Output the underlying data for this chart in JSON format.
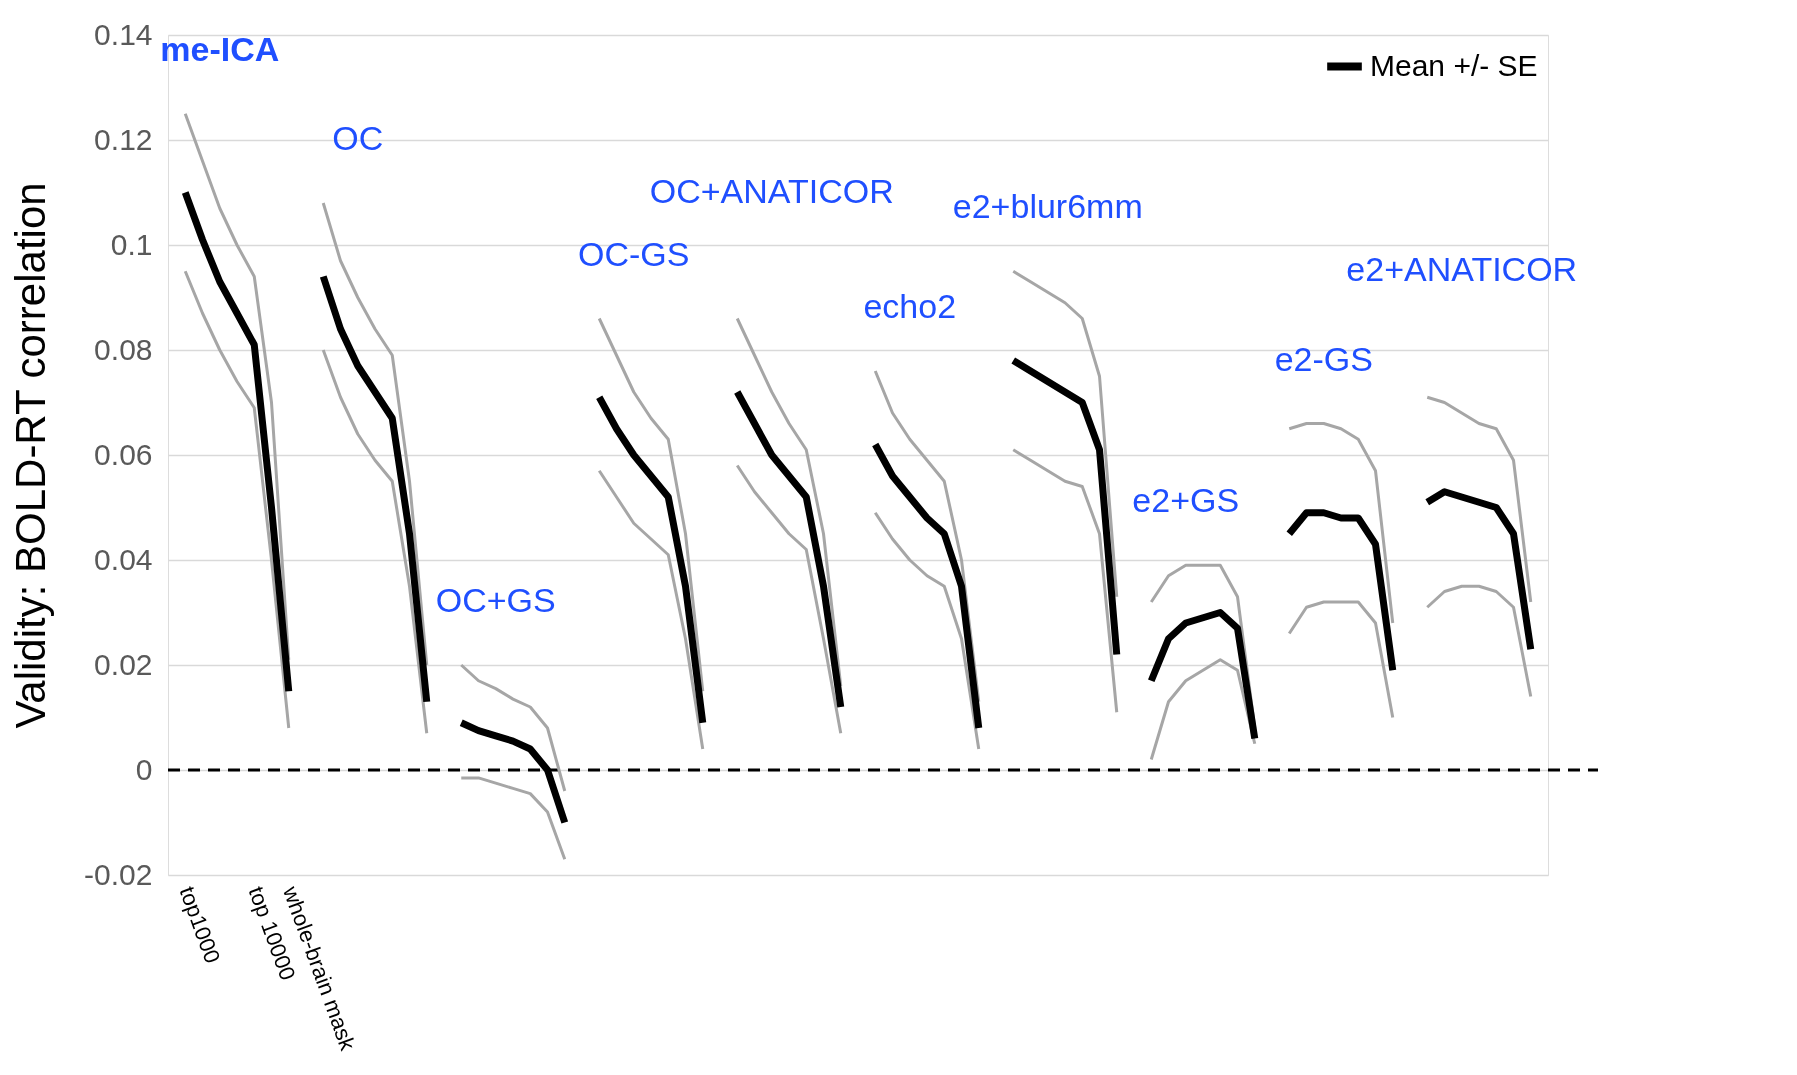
{
  "chart_data": {
    "type": "line",
    "ylabel": "Validity: BOLD-RT correlation",
    "categories": [
      "top1000",
      null,
      null,
      null,
      "top 10000",
      null,
      "whole-brain mask",
      null,
      null,
      null,
      null,
      null,
      null,
      null,
      null,
      null,
      null,
      null,
      null,
      null,
      null,
      null,
      null,
      null,
      null,
      null,
      null,
      null,
      null,
      null,
      null,
      null,
      null,
      null,
      null,
      null,
      null,
      null,
      null,
      null,
      null,
      null,
      null,
      null,
      null,
      null,
      null,
      null,
      null,
      null,
      null,
      null,
      null,
      null,
      null,
      null,
      null,
      null,
      null,
      null,
      null,
      null,
      null,
      null,
      null,
      null,
      null,
      null,
      null,
      null,
      null,
      null,
      null,
      null,
      null,
      null,
      null,
      null,
      null
    ],
    "series": [
      {
        "color": "#a6a6a6",
        "values": [
          0.125,
          0.116,
          0.107,
          0.1,
          0.094,
          0.07,
          0.021,
          null,
          0.108,
          0.097,
          0.09,
          0.084,
          0.079,
          0.055,
          0.02,
          null,
          0.02,
          0.017,
          0.0155,
          0.0135,
          0.012,
          0.008,
          -0.004,
          null,
          0.086,
          0.079,
          0.072,
          0.067,
          0.063,
          0.045,
          0.015,
          null,
          0.086,
          0.079,
          0.072,
          0.066,
          0.061,
          0.045,
          0.016,
          null,
          0.076,
          0.068,
          0.063,
          0.059,
          0.055,
          0.04,
          0.013,
          null,
          0.095,
          0.093,
          0.091,
          0.089,
          0.086,
          0.075,
          0.033,
          null,
          0.032,
          0.037,
          0.039,
          0.039,
          0.039,
          0.033,
          0.008,
          null,
          0.065,
          0.066,
          0.066,
          0.065,
          0.063,
          0.057,
          0.028,
          null,
          0.071,
          0.07,
          0.068,
          0.066,
          0.065,
          0.059,
          0.032
        ]
      },
      {
        "color": "#a6a6a6",
        "values": [
          0.095,
          0.087,
          0.08,
          0.074,
          0.069,
          0.04,
          0.008,
          null,
          0.08,
          0.071,
          0.064,
          0.059,
          0.055,
          0.035,
          0.007,
          null,
          -0.0015,
          -0.0015,
          -0.0025,
          -0.0035,
          -0.0045,
          -0.008,
          -0.017,
          null,
          0.057,
          0.052,
          0.047,
          0.044,
          0.041,
          0.025,
          0.004,
          null,
          0.058,
          0.053,
          0.049,
          0.045,
          0.042,
          0.025,
          0.007,
          null,
          0.049,
          0.044,
          0.04,
          0.037,
          0.035,
          0.025,
          0.004,
          null,
          0.061,
          0.059,
          0.057,
          0.055,
          0.054,
          0.045,
          0.011,
          null,
          0.002,
          0.013,
          0.017,
          0.019,
          0.021,
          0.019,
          0.005,
          null,
          0.026,
          0.031,
          0.032,
          0.032,
          0.032,
          0.028,
          0.01,
          null,
          0.031,
          0.034,
          0.035,
          0.035,
          0.034,
          0.031,
          0.014
        ]
      },
      {
        "name": "Mean +/- SE",
        "color": "#000000",
        "values": [
          0.11,
          0.101,
          0.093,
          0.087,
          0.081,
          0.05,
          0.015,
          null,
          0.094,
          0.084,
          0.077,
          0.072,
          0.067,
          0.045,
          0.013,
          null,
          0.009,
          0.0075,
          0.0065,
          0.0055,
          0.004,
          0.0,
          -0.01,
          null,
          0.071,
          0.065,
          0.06,
          0.056,
          0.052,
          0.035,
          0.009,
          null,
          0.072,
          0.066,
          0.06,
          0.056,
          0.052,
          0.035,
          0.012,
          null,
          0.062,
          0.056,
          0.052,
          0.048,
          0.045,
          0.035,
          0.008,
          null,
          0.078,
          0.076,
          0.074,
          0.072,
          0.07,
          0.061,
          0.022,
          null,
          0.017,
          0.025,
          0.028,
          0.029,
          0.03,
          0.027,
          0.006,
          null,
          0.045,
          0.049,
          0.049,
          0.048,
          0.048,
          0.043,
          0.019,
          null,
          0.051,
          0.053,
          0.052,
          0.051,
          0.05,
          0.045,
          0.023
        ]
      }
    ],
    "ylim": [
      -0.02,
      0.14
    ],
    "yticks": [
      -0.02,
      0,
      0.02,
      0.04,
      0.06,
      0.08,
      0.1,
      0.12,
      0.14
    ],
    "grid": "y",
    "legend": "top right",
    "ref_lines": [
      {
        "axis": "y",
        "value": 0,
        "color": "#000000",
        "line_style": "dashed"
      }
    ],
    "annotations": [
      "me-ICA",
      "OC",
      "OC+GS",
      "OC-GS",
      "OC+ANATICOR",
      "echo2",
      "e2+blur6mm",
      "e2+GS",
      "e2-GS",
      "e2+ANATICOR"
    ]
  }
}
